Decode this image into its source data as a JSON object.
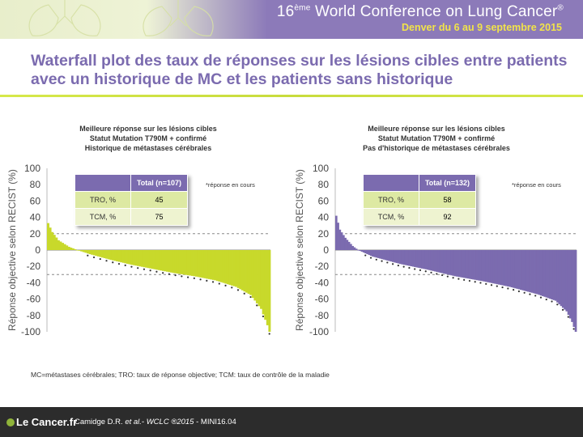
{
  "header": {
    "conference_prefix": "16",
    "conference_sup": "ème",
    "conference_main": " World Conference on Lung Cancer",
    "conference_mark": "®",
    "subtitle": "Denver du 6 au 9 septembre 2015"
  },
  "slide_title": "Waterfall plot des taux de réponses sur les lésions cibles entre patients avec un historique de MC et les patients sans historique",
  "footnote": "MC=métastases cérébrales; TRO: taux de réponse objective; TCM: taux de contrôle de la maladie",
  "footer": {
    "logo_text": "Le Cancer.fr",
    "citation_prefix": "Camidge D.R. ",
    "citation_italic": "et al.- WCLC ®2015",
    "citation_suffix": " - MINI16.04"
  },
  "colors": {
    "purple": "#7b6baf",
    "lime": "#c8d92b",
    "footer": "#2c2c2c"
  },
  "chart_data": [
    {
      "type": "bar",
      "chart_type": "waterfall",
      "title_lines": [
        "Meilleure réponse sur les lésions cibles",
        "Statut Mutation T790M + confirmé",
        "Historique de métastases cérébrales"
      ],
      "ylabel": "Réponse objective selon RECIST (%)",
      "ylim": [
        -100,
        100
      ],
      "yticks": [
        100,
        80,
        60,
        40,
        20,
        0,
        -20,
        -40,
        -60,
        -80,
        -100
      ],
      "reference_lines": [
        20,
        -30
      ],
      "color": "#c8d92b",
      "legend_note": "*réponse en cours",
      "table": {
        "header": [
          "",
          "Total (n=107)"
        ],
        "rows": [
          [
            "TRO, %",
            "45"
          ],
          [
            "TCM, %",
            "75"
          ]
        ]
      },
      "n": 107,
      "control_points": [
        [
          0,
          33
        ],
        [
          2,
          22
        ],
        [
          5,
          12
        ],
        [
          10,
          4
        ],
        [
          14,
          0
        ],
        [
          20,
          -5
        ],
        [
          30,
          -12
        ],
        [
          40,
          -18
        ],
        [
          50,
          -23
        ],
        [
          60,
          -28
        ],
        [
          70,
          -32
        ],
        [
          80,
          -37
        ],
        [
          90,
          -45
        ],
        [
          97,
          -55
        ],
        [
          102,
          -72
        ],
        [
          105,
          -92
        ],
        [
          106,
          -100
        ]
      ]
    },
    {
      "type": "bar",
      "chart_type": "waterfall",
      "title_lines": [
        "Meilleure réponse sur les lésions cibles",
        "Statut Mutation T790M + confirmé",
        "Pas d'historique de métastases cérébrales"
      ],
      "ylabel": "Réponse objective selon RECIST (%)",
      "ylim": [
        -100,
        100
      ],
      "yticks": [
        100,
        80,
        60,
        40,
        20,
        0,
        -20,
        -40,
        -60,
        -80,
        -100
      ],
      "reference_lines": [
        20,
        -30
      ],
      "color": "#7b6baf",
      "legend_note": "*réponse en cours",
      "table": {
        "header": [
          "",
          "Total (n=132)"
        ],
        "rows": [
          [
            "TRO, %",
            "58"
          ],
          [
            "TCM, %",
            "92"
          ]
        ]
      },
      "n": 132,
      "control_points": [
        [
          0,
          42
        ],
        [
          2,
          25
        ],
        [
          5,
          15
        ],
        [
          9,
          5
        ],
        [
          12,
          0
        ],
        [
          20,
          -8
        ],
        [
          35,
          -17
        ],
        [
          50,
          -24
        ],
        [
          65,
          -32
        ],
        [
          80,
          -38
        ],
        [
          95,
          -45
        ],
        [
          110,
          -54
        ],
        [
          120,
          -62
        ],
        [
          126,
          -75
        ],
        [
          129,
          -88
        ],
        [
          131,
          -100
        ]
      ]
    }
  ]
}
